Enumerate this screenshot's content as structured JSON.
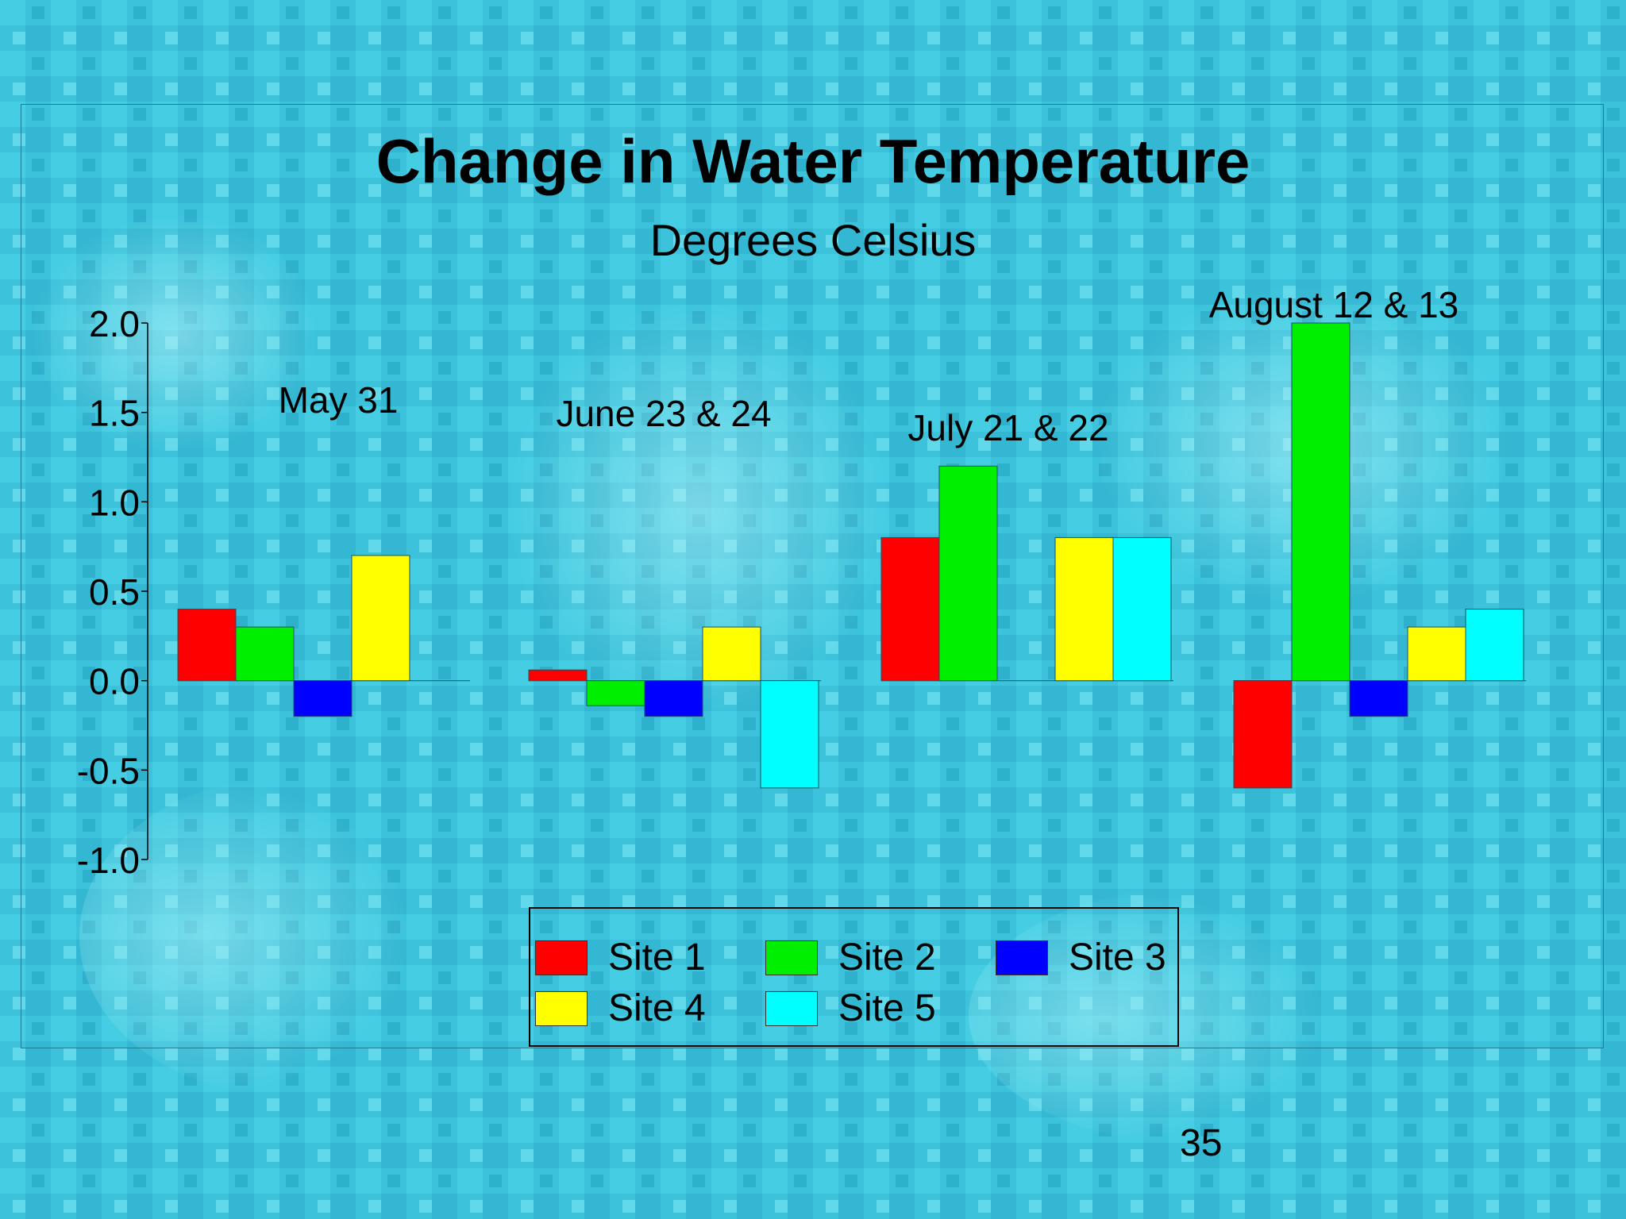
{
  "slide": {
    "page_number": "35"
  },
  "colors": {
    "background": "#3cc3db",
    "background_light": "#7fe3f0",
    "background_dark": "#1ea3c3"
  },
  "chart_data": {
    "type": "bar",
    "title": "Change in Water Temperature",
    "subtitle": "Degrees Celsius",
    "xlabel": "",
    "ylabel": "",
    "ylim": [
      -1.0,
      2.0
    ],
    "yticks": [
      "2.0",
      "1.5",
      "1.0",
      "0.5",
      "0.0",
      "-0.5",
      "-1.0"
    ],
    "categories": [
      "May 31",
      "June 23 & 24",
      "July 21 & 22",
      "August 12 & 13"
    ],
    "grid": false,
    "legend_position": "bottom-center",
    "series": [
      {
        "name": "Site 1",
        "color": "#ff0000",
        "values": [
          0.4,
          0.06,
          0.8,
          -0.6
        ]
      },
      {
        "name": "Site 2",
        "color": "#00ee00",
        "values": [
          0.3,
          -0.14,
          1.2,
          2.0
        ]
      },
      {
        "name": "Site 3",
        "color": "#0000ff",
        "values": [
          -0.2,
          -0.2,
          0.0,
          -0.2
        ]
      },
      {
        "name": "Site 4",
        "color": "#ffff00",
        "values": [
          0.7,
          0.3,
          0.8,
          0.3
        ]
      },
      {
        "name": "Site 5",
        "color": "#00ffff",
        "values": [
          0.0,
          -0.6,
          0.8,
          0.4
        ]
      }
    ]
  }
}
